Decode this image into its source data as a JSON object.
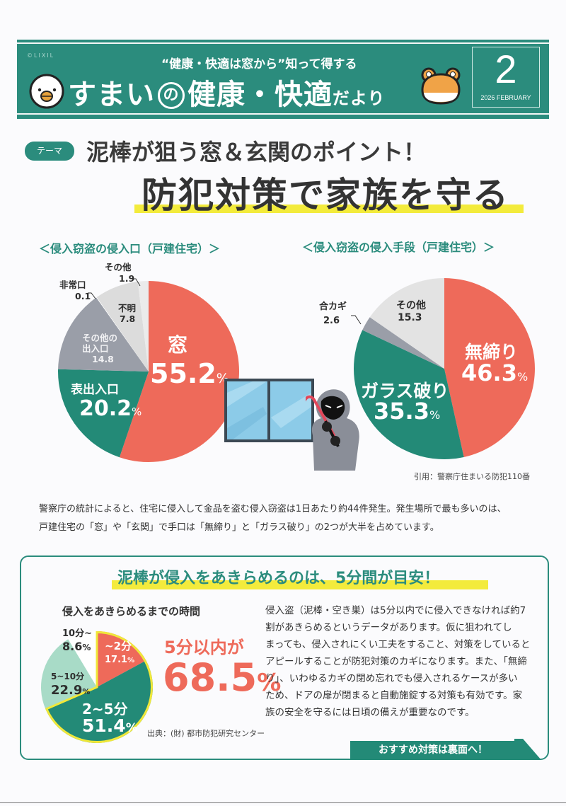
{
  "header": {
    "brand": "©LIXIL",
    "subtitle": "“健康・快適は窓から”知って得する",
    "title_part1": "すまい",
    "title_no": "の",
    "title_part2": "健康・快適",
    "title_part3": "だより",
    "issue_number": "2",
    "issue_date": "2026 FEBRUARY",
    "colors": {
      "band": "#2b8c7d"
    }
  },
  "theme": {
    "badge": "テーマ",
    "headline": "泥棒が狙う窓＆玄関のポイント！",
    "main_title": "防犯対策で家族を守る"
  },
  "chart_data": [
    {
      "type": "pie",
      "title": "＜侵入窃盗の侵入口（戸建住宅）＞",
      "unit": "%",
      "slices": [
        {
          "label": "窓",
          "value": 55.2,
          "display": "55.2",
          "color": "#ee6a5a"
        },
        {
          "label": "表出入口",
          "value": 20.2,
          "display": "20.2",
          "color": "#238a77"
        },
        {
          "label": "その他の出入口",
          "label_line1": "その他の",
          "label_line2": "出入口",
          "value": 14.8,
          "display": "14.8",
          "color": "#9a9ea8"
        },
        {
          "label": "非常口",
          "value": 0.1,
          "display": "0.1",
          "color": "#ffffff"
        },
        {
          "label": "不明",
          "value": 7.8,
          "display": "7.8",
          "color": "#dcdcdc"
        },
        {
          "label": "その他",
          "value": 1.9,
          "display": "1.9",
          "color": "#ebebeb"
        }
      ]
    },
    {
      "type": "pie",
      "title": "＜侵入窃盗の侵入手段（戸建住宅）＞",
      "unit": "%",
      "slices": [
        {
          "label": "無締り",
          "value": 46.3,
          "display": "46.3",
          "color": "#ee6a5a"
        },
        {
          "label": "ガラス破り",
          "value": 35.3,
          "display": "35.3",
          "color": "#238a77"
        },
        {
          "label": "合カギ",
          "value": 2.6,
          "display": "2.6",
          "color": "#9a9ea8"
        },
        {
          "label": "その他",
          "value": 15.3,
          "display": "15.3",
          "color": "#e3e3e3"
        }
      ]
    },
    {
      "type": "pie",
      "title": "侵入をあきらめるまでの時間",
      "unit": "%",
      "highlight_color": "#f0e83a",
      "slices": [
        {
          "label": "~2分",
          "value": 17.1,
          "display": "17.1",
          "color": "#ee6a5a",
          "highlight": true
        },
        {
          "label": "2~5分",
          "value": 51.4,
          "display": "51.4",
          "color": "#238a77",
          "highlight": true
        },
        {
          "label": "5~10分",
          "value": 22.9,
          "display": "22.9",
          "color": "#a8dbc7"
        },
        {
          "label": "10分~",
          "value": 8.6,
          "display": "8.6",
          "color": "#ffffff"
        }
      ],
      "callout_label": "5分以内が",
      "callout_value": "68.5",
      "source": "出典：(財) 都市防犯研究センター"
    }
  ],
  "citation": "引用：警察庁住まいる防犯110番",
  "intro": [
    "警察庁の統計によると、住宅に侵入して金品を盗む侵入窃盗は1日あたり約44件発生。発生場所で最も多いのは、",
    "戸建住宅の「窓」や「玄関」で手口は「無締り」と「ガラス破り」の2つが大半を占めています。"
  ],
  "box": {
    "title": "泥棒が侵入をあきらめるのは、5分間が目安！",
    "paragraph": [
      "侵入盗（泥棒・空き巣）は5分以内でに侵入できなければ約7",
      "割があきらめるというデータがあります。仮に狙われてし",
      "まっても、侵入されにくい工夫をすること、対策をしていると",
      "アピールすることが防犯対策のカギになります。また、「無締",
      "り」、いわゆるカギの閉め忘れでも侵入されるケースが多い",
      "ため、ドアの扉が閉まると自動施錠する対策も有効です。家",
      "族の安全を守るには日頃の備えが重要なのです。"
    ],
    "banner": "おすすめ対策は裏面へ！"
  },
  "icons": {
    "bird": "bird-mascot-icon",
    "frog": "frog-mascot-icon",
    "window": "window-illustration",
    "burglar": "burglar-illustration"
  }
}
